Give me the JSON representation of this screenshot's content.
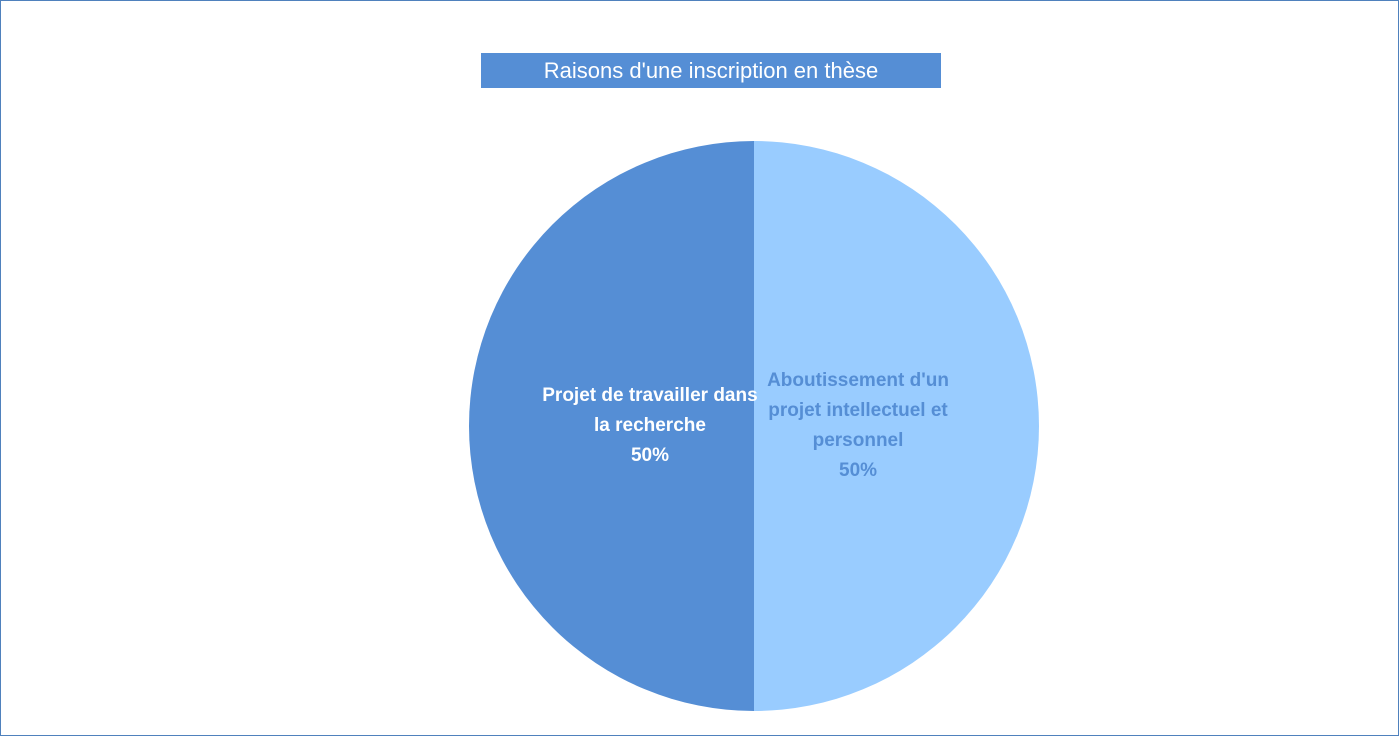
{
  "chart_data": {
    "type": "pie",
    "title": "Raisons d'une inscription en thèse",
    "categories": [
      "Aboutissement d'un projet intellectuel et personnel",
      "Projet de travailler dans la recherche"
    ],
    "values": [
      50,
      50
    ],
    "value_labels": [
      "50%",
      "50%"
    ],
    "colors": [
      "#99ccff",
      "#558ed5"
    ],
    "label_colors": [
      "#558ed5",
      "#ffffff"
    ]
  }
}
